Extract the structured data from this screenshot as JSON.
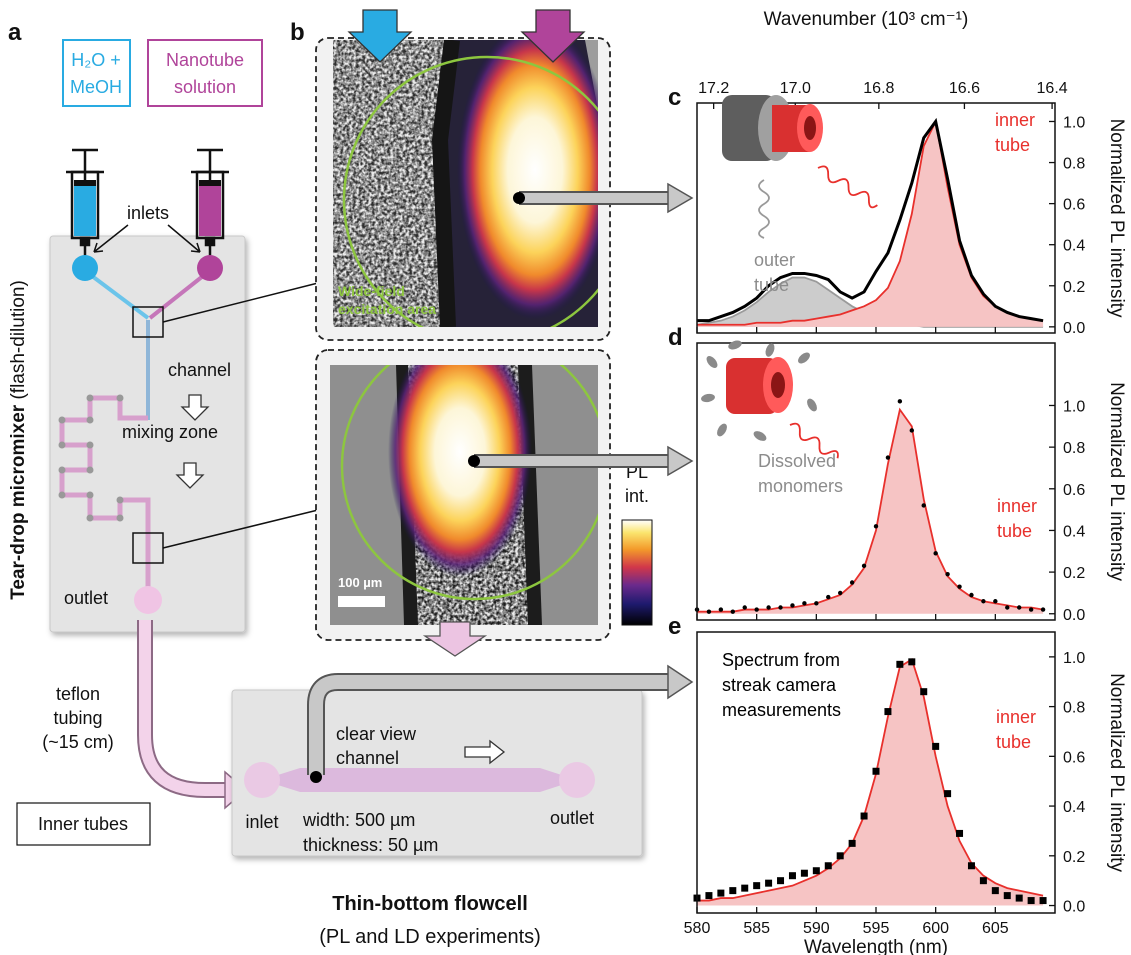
{
  "panel_a": {
    "label": "a",
    "inlet_left": [
      "H₂O +",
      "MeOH"
    ],
    "inlet_right": [
      "Nanotube",
      "solution"
    ],
    "inlets": "inlets",
    "channel": "channel",
    "mixing_zone": "mixing zone",
    "outlet": "outlet",
    "title": "Tear-drop micromixer",
    "title_note": "(flash-dilution)",
    "tubing": [
      "teflon",
      "tubing",
      "(~15 cm)"
    ],
    "inner_tubes": "Inner tubes"
  },
  "flowcell": {
    "channel_label": [
      "clear view",
      "channel"
    ],
    "inlet": "inlet",
    "outlet": "outlet",
    "width": "width: 500 µm",
    "thickness": "thickness: 50 µm",
    "title": "Thin-bottom flowcell",
    "subtitle": "(PL and LD experiments)"
  },
  "panel_b": {
    "label": "b",
    "excitation": [
      "Wide-field",
      "excitation area"
    ],
    "scale_bar": "100 µm",
    "colorbar": [
      "PL",
      "int."
    ]
  },
  "chart_data": [
    {
      "type": "line",
      "label": "c",
      "ylabel": "Normalized PL intensity",
      "yaxis_side": "right",
      "xtick_labels": false,
      "x2label": "Wavenumber (10³ cm⁻¹)",
      "x2ticks": [
        17.2,
        {
          "value": 17,
          "label": "17.0"
        },
        16.8,
        16.6,
        16.4
      ],
      "xlim": [
        580,
        610
      ],
      "xticks": [
        580,
        585,
        590,
        595,
        600,
        605
      ],
      "ylim": [
        -0.03,
        1.09
      ],
      "yticks": [
        {
          "value": 0,
          "label": "0.0"
        },
        0.2,
        0.4,
        0.6,
        0.8,
        {
          "value": 1,
          "label": "1.0"
        }
      ],
      "x": [
        580,
        581,
        582,
        583,
        584,
        585,
        586,
        587,
        588,
        589,
        590,
        591,
        592,
        593,
        594,
        595,
        596,
        597,
        598,
        599,
        600,
        601,
        602,
        603,
        604,
        605,
        606,
        607,
        608,
        609
      ],
      "series": [
        {
          "style": "area",
          "color": "#9a9a9a",
          "fill": "#cccccc",
          "values": [
            0.01,
            0.02,
            0.03,
            0.05,
            0.08,
            0.12,
            0.17,
            0.21,
            0.24,
            0.24,
            0.22,
            0.18,
            0.14,
            0.1,
            0.07,
            0.04,
            0.03,
            0.01,
            0.01,
            0,
            0,
            0,
            0,
            0,
            0,
            0,
            0,
            0,
            0,
            0
          ]
        },
        {
          "style": "area",
          "color": "#e8302c",
          "fill": "#f6c4c4",
          "values": [
            0.01,
            0.01,
            0.01,
            0.01,
            0.01,
            0.02,
            0.02,
            0.02,
            0.03,
            0.03,
            0.04,
            0.05,
            0.06,
            0.08,
            0.1,
            0.13,
            0.19,
            0.32,
            0.55,
            0.88,
            1.0,
            0.68,
            0.4,
            0.24,
            0.15,
            0.1,
            0.07,
            0.05,
            0.04,
            0.03
          ]
        },
        {
          "style": "line",
          "color": "#000000",
          "values": [
            0.03,
            0.03,
            0.05,
            0.07,
            0.1,
            0.14,
            0.2,
            0.24,
            0.26,
            0.26,
            0.25,
            0.23,
            0.17,
            0.14,
            0.17,
            0.27,
            0.36,
            0.52,
            0.7,
            0.92,
            1.0,
            0.72,
            0.42,
            0.25,
            0.16,
            0.1,
            0.07,
            0.05,
            0.04,
            0.03
          ]
        }
      ],
      "annotations": {
        "inner": {
          "text": [
            "inner",
            "tube"
          ],
          "color": "#e8302c"
        },
        "outer": {
          "text": [
            "outer",
            "tube"
          ],
          "color": "#8c8c8c"
        }
      }
    },
    {
      "type": "line",
      "label": "d",
      "ylabel": "Normalized PL intensity",
      "yaxis_side": "right",
      "xtick_labels": false,
      "xlim": [
        580,
        610
      ],
      "xticks": [
        580,
        585,
        590,
        595,
        600,
        605
      ],
      "ylim": [
        -0.03,
        1.3
      ],
      "yticks": [
        {
          "value": 0,
          "label": "0.0"
        },
        0.2,
        0.4,
        0.6,
        0.8,
        {
          "value": 1,
          "label": "1.0"
        }
      ],
      "x": [
        580,
        581,
        582,
        583,
        584,
        585,
        586,
        587,
        588,
        589,
        590,
        591,
        592,
        593,
        594,
        595,
        596,
        597,
        598,
        599,
        600,
        601,
        602,
        603,
        604,
        605,
        606,
        607,
        608,
        609
      ],
      "series": [
        {
          "style": "area",
          "color": "#e8302c",
          "fill": "#f6c4c4",
          "values": [
            0.01,
            0.01,
            0.01,
            0.01,
            0.02,
            0.02,
            0.02,
            0.03,
            0.03,
            0.04,
            0.05,
            0.07,
            0.09,
            0.14,
            0.22,
            0.4,
            0.72,
            0.98,
            0.9,
            0.55,
            0.3,
            0.18,
            0.12,
            0.08,
            0.06,
            0.05,
            0.04,
            0.03,
            0.03,
            0.02
          ]
        },
        {
          "style": "dots",
          "color": "#000000",
          "values": [
            0.02,
            0.01,
            0.02,
            0.01,
            0.03,
            0.02,
            0.03,
            0.03,
            0.04,
            0.05,
            0.05,
            0.08,
            0.1,
            0.15,
            0.23,
            0.42,
            0.75,
            1.02,
            0.88,
            0.52,
            0.29,
            0.19,
            0.13,
            0.09,
            0.06,
            0.06,
            0.03,
            0.03,
            0.02,
            0.02
          ]
        }
      ],
      "annotations": {
        "inner": {
          "text": [
            "inner",
            "tube"
          ],
          "color": "#e8302c"
        },
        "dissolved": {
          "text": [
            "Dissolved",
            "monomers"
          ],
          "color": "#8c8c8c"
        }
      }
    },
    {
      "type": "line",
      "label": "e",
      "ylabel": "Normalized PL intensity",
      "yaxis_side": "right",
      "xtick_labels": true,
      "xlabel": "Wavelength (nm)",
      "xlim": [
        580,
        610
      ],
      "xticks": [
        580,
        585,
        590,
        595,
        600,
        605
      ],
      "ylim": [
        -0.03,
        1.1
      ],
      "yticks": [
        {
          "value": 0,
          "label": "0.0"
        },
        0.2,
        0.4,
        0.6,
        0.8,
        {
          "value": 1,
          "label": "1.0"
        }
      ],
      "x": [
        580,
        581,
        582,
        583,
        584,
        585,
        586,
        587,
        588,
        589,
        590,
        591,
        592,
        593,
        594,
        595,
        596,
        597,
        598,
        599,
        600,
        601,
        602,
        603,
        604,
        605,
        606,
        607,
        608,
        609
      ],
      "series": [
        {
          "style": "area",
          "color": "#e8302c",
          "fill": "#f6c4c4",
          "values": [
            0.02,
            0.02,
            0.03,
            0.03,
            0.04,
            0.05,
            0.06,
            0.07,
            0.08,
            0.1,
            0.12,
            0.15,
            0.19,
            0.25,
            0.36,
            0.53,
            0.76,
            0.96,
            0.99,
            0.84,
            0.6,
            0.4,
            0.26,
            0.17,
            0.12,
            0.09,
            0.07,
            0.06,
            0.05,
            0.04
          ]
        },
        {
          "style": "squares",
          "color": "#000000",
          "values": [
            0.03,
            0.04,
            0.05,
            0.06,
            0.07,
            0.08,
            0.09,
            0.1,
            0.12,
            0.13,
            0.14,
            0.16,
            0.2,
            0.25,
            0.36,
            0.54,
            0.78,
            0.97,
            0.98,
            0.86,
            0.64,
            0.45,
            0.29,
            0.16,
            0.1,
            0.06,
            0.04,
            0.03,
            0.02,
            0.02
          ]
        }
      ],
      "annotations": {
        "inner": {
          "text": [
            "inner",
            "tube"
          ],
          "color": "#e8302c"
        },
        "streak": {
          "text": [
            "Spectrum from",
            "streak camera",
            "measurements"
          ],
          "color": "#000000"
        }
      }
    }
  ]
}
